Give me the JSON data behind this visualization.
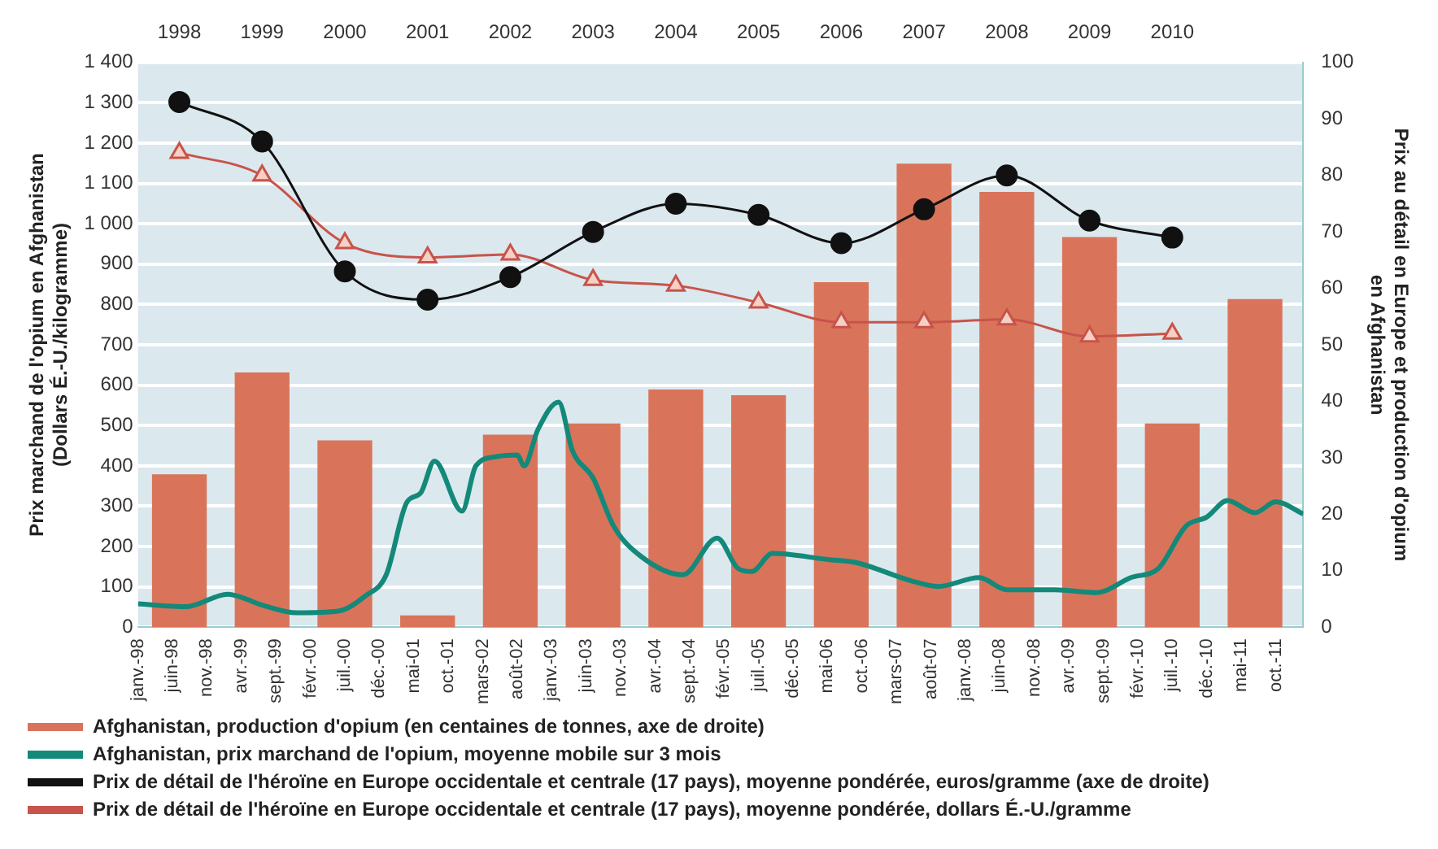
{
  "chart_data": {
    "type": "bar",
    "ylabel": "Prix marchand de l'opium en Afghanistan\n(Dollars É.-U./kilogramme)",
    "y2label": "Prix au détail en Europe et production d'opium\nen Afghanistan",
    "xlim": [
      "1998-01",
      "2012-02"
    ],
    "xticks": [
      {
        "value": "1998-01",
        "label": "janv.-98"
      },
      {
        "value": "1998-06",
        "label": "juin-98"
      },
      {
        "value": "1998-11",
        "label": "nov.-98"
      },
      {
        "value": "1999-04",
        "label": "avr.-99"
      },
      {
        "value": "1999-09",
        "label": "sept.-99"
      },
      {
        "value": "2000-02",
        "label": "févr.-00"
      },
      {
        "value": "2000-07",
        "label": "juil.-00"
      },
      {
        "value": "2000-12",
        "label": "déc.-00"
      },
      {
        "value": "2001-05",
        "label": "mai-01"
      },
      {
        "value": "2001-10",
        "label": "oct.-01"
      },
      {
        "value": "2002-03",
        "label": "mars-02"
      },
      {
        "value": "2002-08",
        "label": "août-02"
      },
      {
        "value": "2003-01",
        "label": "janv.-03"
      },
      {
        "value": "2003-06",
        "label": "juin-03"
      },
      {
        "value": "2003-11",
        "label": "nov.-03"
      },
      {
        "value": "2004-04",
        "label": "avr.-04"
      },
      {
        "value": "2004-09",
        "label": "sept.-04"
      },
      {
        "value": "2005-02",
        "label": "févr.-05"
      },
      {
        "value": "2005-07",
        "label": "juil.-05"
      },
      {
        "value": "2005-12",
        "label": "déc.-05"
      },
      {
        "value": "2006-05",
        "label": "mai-06"
      },
      {
        "value": "2006-10",
        "label": "oct.-06"
      },
      {
        "value": "2007-03",
        "label": "mars-07"
      },
      {
        "value": "2007-08",
        "label": "août-07"
      },
      {
        "value": "2008-01",
        "label": "janv.-08"
      },
      {
        "value": "2008-06",
        "label": "juin-08"
      },
      {
        "value": "2008-11",
        "label": "nov.-08"
      },
      {
        "value": "2009-04",
        "label": "avr.-09"
      },
      {
        "value": "2009-09",
        "label": "sept.-09"
      },
      {
        "value": "2010-02",
        "label": "févr.-10"
      },
      {
        "value": "2010-07",
        "label": "juil.-10"
      },
      {
        "value": "2010-12",
        "label": "déc.-10"
      },
      {
        "value": "2011-05",
        "label": "mai-11"
      },
      {
        "value": "2011-10",
        "label": "oct.-11"
      }
    ],
    "x2lim": [
      "1998-01",
      "2012-02"
    ],
    "x2ticks": [
      {
        "value": "1998-07",
        "label": "1998"
      },
      {
        "value": "1999-07",
        "label": "1999"
      },
      {
        "value": "2000-07",
        "label": "2000"
      },
      {
        "value": "2001-07",
        "label": "2001"
      },
      {
        "value": "2002-07",
        "label": "2002"
      },
      {
        "value": "2003-07",
        "label": "2003"
      },
      {
        "value": "2004-07",
        "label": "2004"
      },
      {
        "value": "2005-07",
        "label": "2005"
      },
      {
        "value": "2006-07",
        "label": "2006"
      },
      {
        "value": "2007-07",
        "label": "2007"
      },
      {
        "value": "2008-07",
        "label": "2008"
      },
      {
        "value": "2009-07",
        "label": "2009"
      },
      {
        "value": "2010-07",
        "label": "2010"
      }
    ],
    "ylim": [
      0,
      1400
    ],
    "yticks": [
      0,
      100,
      200,
      300,
      400,
      500,
      600,
      700,
      800,
      900,
      {
        "value": 1000,
        "label": "1 000"
      },
      {
        "value": 1100,
        "label": "1 100"
      },
      {
        "value": 1200,
        "label": "1 200"
      },
      {
        "value": 1300,
        "label": "1 300"
      },
      {
        "value": 1400,
        "label": "1 400"
      }
    ],
    "y2lim": [
      0,
      100
    ],
    "y2ticks": [
      0,
      10,
      20,
      30,
      40,
      50,
      60,
      70,
      80,
      90,
      100
    ],
    "grid": "y",
    "legend": "bottom",
    "series": [
      {
        "name": "Afghanistan, production d'opium (en centaines de tonnes, axe de droite)",
        "axis": "y2",
        "color": "#d9745a",
        "x": [
          "1998-07",
          "1999-07",
          "2000-07",
          "2001-07",
          "2002-07",
          "2003-07",
          "2004-07",
          "2005-07",
          "2006-07",
          "2007-07",
          "2008-07",
          "2009-07",
          "2010-07",
          "2011-07"
        ],
        "values": [
          27,
          45,
          33,
          2,
          34,
          36,
          42,
          41,
          61,
          82,
          77,
          69,
          36,
          58
        ]
      },
      {
        "name": "Afghanistan, prix marchand de l'opium, moyenne mobile sur 3 mois",
        "type": "line",
        "axis": "y",
        "color": "#13897a",
        "marker": "none",
        "x": [
          "1998-01",
          "1998-08",
          "1999-02",
          "1999-07",
          "1999-12",
          "2000-06",
          "2000-10",
          "2001-01",
          "2001-04",
          "2001-06",
          "2001-08",
          "2001-12",
          "2002-02",
          "2002-05",
          "2002-08",
          "2002-09",
          "2002-11",
          "2003-02",
          "2003-04",
          "2003-07",
          "2003-10",
          "2004-02",
          "2004-08",
          "2005-01",
          "2005-04",
          "2005-06",
          "2005-09",
          "2006-05",
          "2006-09",
          "2007-05",
          "2007-09",
          "2008-03",
          "2008-07",
          "2009-02",
          "2009-08",
          "2010-01",
          "2010-05",
          "2010-09",
          "2010-12",
          "2011-03",
          "2011-07",
          "2011-10",
          "2012-02"
        ],
        "values": [
          58,
          51,
          82,
          55,
          36,
          40,
          78,
          130,
          310,
          333,
          412,
          288,
          400,
          423,
          427,
          400,
          490,
          558,
          438,
          370,
          250,
          175,
          130,
          221,
          146,
          138,
          183,
          168,
          161,
          116,
          101,
          123,
          93,
          93,
          86,
          123,
          146,
          251,
          273,
          314,
          284,
          311,
          281
        ]
      },
      {
        "name": "Prix de détail de l'héroïne en Europe occidentale et centrale (17 pays), moyenne pondérée, euros/gramme (axe de droite)",
        "type": "line",
        "axis": "y2",
        "color": "#111111",
        "marker": "circle",
        "x": [
          "1998-07",
          "1999-07",
          "2000-07",
          "2001-07",
          "2002-07",
          "2003-07",
          "2004-07",
          "2005-07",
          "2006-07",
          "2007-07",
          "2008-07",
          "2009-07",
          "2010-07"
        ],
        "values": [
          93,
          86,
          63,
          58,
          62,
          70,
          75,
          73,
          68,
          74,
          80,
          72,
          69
        ]
      },
      {
        "name": "Prix de détail de l'héroïne en Europe occidentale et centrale (17 pays), moyenne pondérée, dollars É.-U./gramme",
        "type": "line",
        "axis": "y2",
        "color": "#c8534a",
        "marker": "triangle",
        "x": [
          "1998-07",
          "1999-07",
          "2000-07",
          "2001-07",
          "2002-07",
          "2003-07",
          "2004-07",
          "2005-07",
          "2006-07",
          "2007-07",
          "2008-07",
          "2009-07",
          "2010-07"
        ],
        "values": [
          84,
          80,
          68,
          65.5,
          66,
          61.5,
          60.5,
          57.5,
          54,
          54,
          54.5,
          51.5,
          52
        ]
      }
    ]
  }
}
